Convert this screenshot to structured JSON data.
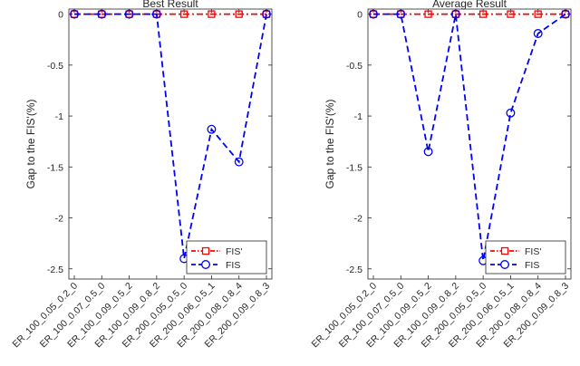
{
  "chart_data": [
    {
      "type": "line",
      "title": "Best Result",
      "ylabel": "Gap to the FIS'(%)",
      "xlabel": "",
      "categories": [
        "ER_100_0.05_0.2_0",
        "ER_100_0.07_0.5_0",
        "ER_100_0.09_0.5_2",
        "ER_100_0.09_0.8_2",
        "ER_200_0.05_0.5_0",
        "ER_200_0.06_0.5_1",
        "ER_200_0.08_0.8_4",
        "ER_200_0.09_0.8_3"
      ],
      "ylim": [
        -2.6,
        0.05
      ],
      "yticks": [
        0,
        -0.5,
        -1,
        -1.5,
        -2,
        -2.5
      ],
      "ytick_labels": [
        "0",
        "-0.5",
        "-1",
        "-1.5",
        "-2",
        "-2.5"
      ],
      "grid": false,
      "legend_position": "bottom-right",
      "series": [
        {
          "name": "FIS'",
          "values": [
            0,
            0,
            0,
            0,
            0,
            0,
            0,
            0
          ],
          "color": "#ff0000",
          "marker": "square",
          "linestyle": "dash-dot"
        },
        {
          "name": "FIS",
          "values": [
            0,
            0,
            0,
            0,
            -2.4,
            -1.13,
            -1.45,
            0
          ],
          "color": "#0000ff",
          "marker": "circle",
          "linestyle": "dashed"
        }
      ]
    },
    {
      "type": "line",
      "title": "Average Result",
      "ylabel": "Gap to the FIS'(%)",
      "xlabel": "",
      "categories": [
        "ER_100_0.05_0.2_0",
        "ER_100_0.07_0.5_0",
        "ER_100_0.09_0.5_2",
        "ER_100_0.09_0.8_2",
        "ER_200_0.05_0.5_0",
        "ER_200_0.06_0.5_1",
        "ER_200_0.08_0.8_4",
        "ER_200_0.09_0.8_3"
      ],
      "ylim": [
        -2.6,
        0.05
      ],
      "yticks": [
        0,
        -0.5,
        -1,
        -1.5,
        -2,
        -2.5
      ],
      "ytick_labels": [
        "0",
        "-0.5",
        "-1",
        "-1.5",
        "-2",
        "-2.5"
      ],
      "grid": false,
      "legend_position": "bottom-right",
      "series": [
        {
          "name": "FIS'",
          "values": [
            0,
            0,
            0,
            0,
            0,
            0,
            0,
            0
          ],
          "color": "#ff0000",
          "marker": "square",
          "linestyle": "dash-dot"
        },
        {
          "name": "FIS",
          "values": [
            0,
            0,
            -1.35,
            0,
            -2.42,
            -0.97,
            -0.19,
            0
          ],
          "color": "#0000ff",
          "marker": "circle",
          "linestyle": "dashed"
        }
      ]
    }
  ]
}
